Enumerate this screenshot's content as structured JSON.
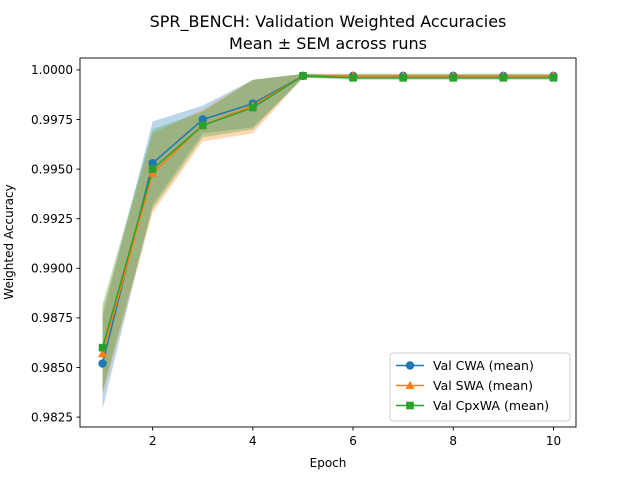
{
  "chart_data": {
    "type": "line",
    "title": "SPR_BENCH: Validation Weighted Accuracies",
    "subtitle": "Mean ± SEM across runs",
    "xlabel": "Epoch",
    "ylabel": "Weighted Accuracy",
    "xlim": [
      0.55,
      10.45
    ],
    "ylim": [
      0.982,
      1.0006
    ],
    "xticks": [
      2,
      4,
      6,
      8,
      10
    ],
    "yticks": [
      0.9825,
      0.985,
      0.9875,
      0.99,
      0.9925,
      0.995,
      0.9975,
      1.0
    ],
    "ytick_labels": [
      "0.9825",
      "0.9850",
      "0.9875",
      "0.9900",
      "0.9925",
      "0.9950",
      "0.9975",
      "1.0000"
    ],
    "grid": false,
    "legend_position": "lower-right",
    "x": [
      1,
      2,
      3,
      4,
      5,
      6,
      7,
      8,
      9,
      10
    ],
    "series": [
      {
        "name": "Val CWA (mean)",
        "color": "#1f77b4",
        "marker": "circle",
        "values": [
          0.9852,
          0.9953,
          0.9975,
          0.9983,
          0.9997,
          0.9997,
          0.9997,
          0.9997,
          0.9997,
          0.9997
        ],
        "lower": [
          0.9829,
          0.9932,
          0.9968,
          0.9971,
          0.9996,
          0.9996,
          0.9996,
          0.9996,
          0.9996,
          0.9996
        ],
        "upper": [
          0.9876,
          0.9974,
          0.9982,
          0.9995,
          0.9998,
          0.9998,
          0.9998,
          0.9998,
          0.9998,
          0.9998
        ]
      },
      {
        "name": "Val SWA (mean)",
        "color": "#ff7f0e",
        "marker": "triangle",
        "values": [
          0.9857,
          0.9948,
          0.9972,
          0.9982,
          0.9997,
          0.9997,
          0.9997,
          0.9997,
          0.9997,
          0.9997
        ],
        "lower": [
          0.9836,
          0.9928,
          0.9964,
          0.9968,
          0.9996,
          0.9996,
          0.9996,
          0.9996,
          0.9996,
          0.9996
        ],
        "upper": [
          0.9879,
          0.9968,
          0.998,
          0.9995,
          0.9998,
          0.9998,
          0.9998,
          0.9998,
          0.9998,
          0.9998
        ]
      },
      {
        "name": "Val CpxWA (mean)",
        "color": "#2ca02c",
        "marker": "square",
        "values": [
          0.986,
          0.995,
          0.9972,
          0.9981,
          0.9997,
          0.9996,
          0.9996,
          0.9996,
          0.9996,
          0.9996
        ],
        "lower": [
          0.9838,
          0.993,
          0.9966,
          0.997,
          0.9996,
          0.9995,
          0.9995,
          0.9995,
          0.9995,
          0.9995
        ],
        "upper": [
          0.9882,
          0.997,
          0.9979,
          0.9995,
          0.9998,
          0.9997,
          0.9997,
          0.9997,
          0.9997,
          0.9997
        ]
      }
    ]
  }
}
